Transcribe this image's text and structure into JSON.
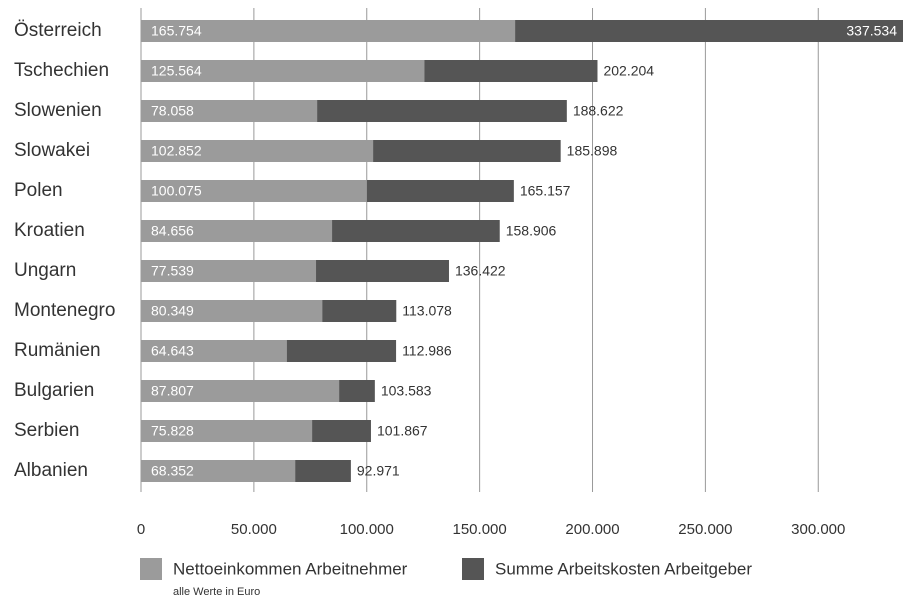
{
  "chart_data": {
    "type": "overlap-bar",
    "categories": [
      "Österreich",
      "Tschechien",
      "Slowenien",
      "Slowakei",
      "Polen",
      "Kroatien",
      "Ungarn",
      "Montenegro",
      "Rumänien",
      "Bulgarien",
      "Serbien",
      "Albanien"
    ],
    "series": [
      {
        "name": "Summe Arbeitskosten Arbeitgeber",
        "color": "#555555",
        "values": [
          337534,
          202204,
          188622,
          185898,
          165157,
          158906,
          136422,
          113078,
          112986,
          103583,
          101867,
          92971
        ],
        "value_labels": [
          "337.534",
          "202.204",
          "188.622",
          "185.898",
          "165.157",
          "158.906",
          "136.422",
          "113.078",
          "112.986",
          "103.583",
          "101.867",
          "92.971"
        ]
      },
      {
        "name": "Nettoeinkommen Arbeitnehmer",
        "color": "#9b9b9b",
        "values": [
          165754,
          125564,
          78058,
          102852,
          100075,
          84656,
          77539,
          80349,
          64643,
          87807,
          75828,
          68352
        ],
        "value_labels": [
          "165.754",
          "125.564",
          "78.058",
          "102.852",
          "100.075",
          "84.656",
          "77.539",
          "80.349",
          "64.643",
          "87.807",
          "75.828",
          "68.352"
        ]
      }
    ],
    "xlim": [
      0,
      337534
    ],
    "xticks": [
      0,
      {
        "value": 50000,
        "label": "50.000"
      },
      {
        "value": 100000,
        "label": "100.000"
      },
      {
        "value": 150000,
        "label": "150.000"
      },
      {
        "value": 200000,
        "label": "200.000"
      },
      {
        "value": 250000,
        "label": "250.000"
      },
      {
        "value": 300000,
        "label": "300.000"
      }
    ],
    "grid": true,
    "note": "alle Werte in Euro"
  }
}
